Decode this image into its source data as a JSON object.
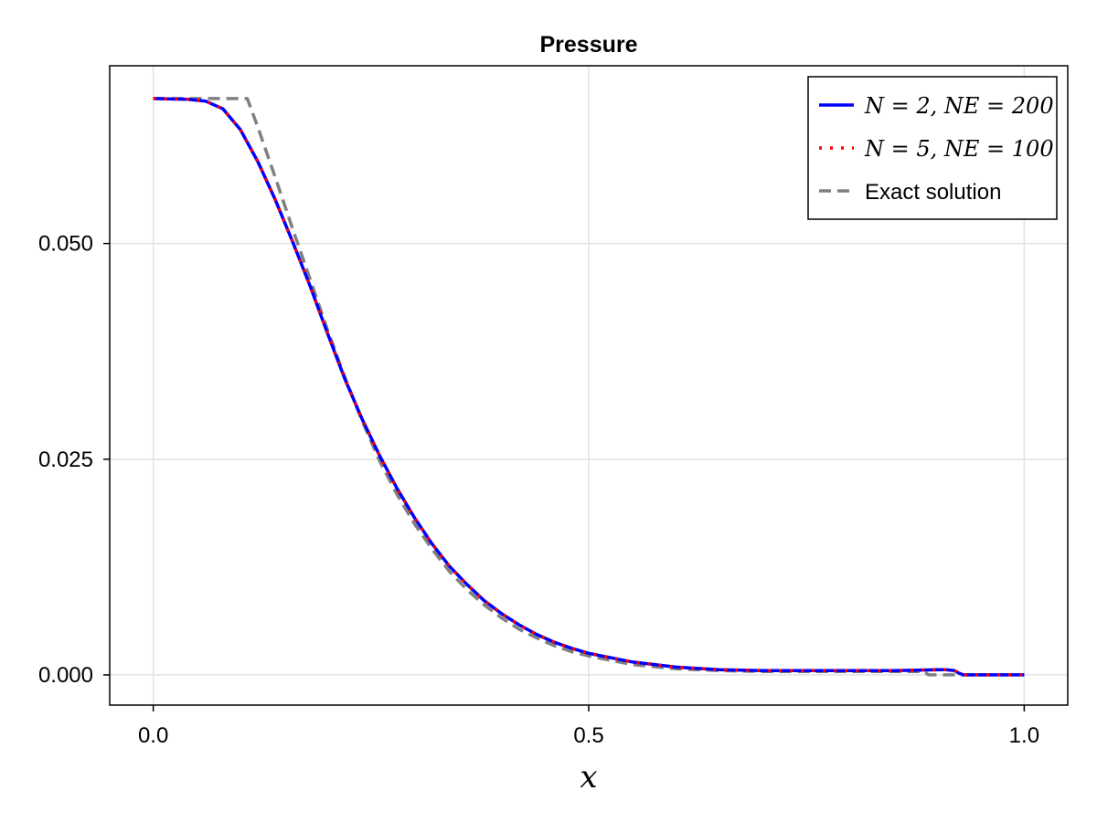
{
  "chart_data": {
    "type": "line",
    "title": "Pressure",
    "xlabel": "x",
    "ylabel": "",
    "xlim": [
      -0.05,
      1.05
    ],
    "ylim": [
      -0.0035,
      0.0706
    ],
    "xticks": [
      0.0,
      0.5,
      1.0
    ],
    "xtick_labels": [
      "0.0",
      "0.5",
      "1.0"
    ],
    "yticks": [
      0.0,
      0.025,
      0.05
    ],
    "ytick_labels": [
      "0.000",
      "0.025",
      "0.050"
    ],
    "grid": true,
    "legend_position": "top-right",
    "series": [
      {
        "name": "N = 2, NE = 200",
        "color": "#0000ff",
        "style": "solid",
        "x": [
          0.0,
          0.04,
          0.06,
          0.08,
          0.1,
          0.12,
          0.14,
          0.16,
          0.18,
          0.2,
          0.22,
          0.24,
          0.26,
          0.28,
          0.3,
          0.32,
          0.34,
          0.36,
          0.38,
          0.4,
          0.42,
          0.44,
          0.46,
          0.48,
          0.5,
          0.55,
          0.6,
          0.65,
          0.7,
          0.75,
          0.8,
          0.85,
          0.9,
          0.91,
          0.92,
          0.925,
          0.93,
          0.94,
          1.0
        ],
        "y": [
          0.0668,
          0.0667,
          0.0665,
          0.0656,
          0.0632,
          0.0595,
          0.0551,
          0.0502,
          0.0451,
          0.0396,
          0.0343,
          0.0296,
          0.0254,
          0.0216,
          0.0182,
          0.0152,
          0.0126,
          0.0105,
          0.0086,
          0.0071,
          0.0058,
          0.0047,
          0.0038,
          0.0031,
          0.0025,
          0.0015,
          0.0009,
          0.0006,
          0.0005,
          0.0005,
          0.0005,
          0.0005,
          0.0006,
          0.0006,
          0.0005,
          0.0002,
          0.0,
          0.0,
          0.0
        ]
      },
      {
        "name": "N = 5, NE = 100",
        "color": "#ff0000",
        "style": "dotted",
        "x": [
          0.0,
          0.04,
          0.06,
          0.08,
          0.1,
          0.12,
          0.14,
          0.16,
          0.18,
          0.2,
          0.22,
          0.24,
          0.26,
          0.28,
          0.3,
          0.32,
          0.34,
          0.36,
          0.38,
          0.4,
          0.42,
          0.44,
          0.46,
          0.48,
          0.5,
          0.55,
          0.6,
          0.65,
          0.7,
          0.75,
          0.8,
          0.85,
          0.9,
          0.91,
          0.92,
          0.925,
          0.93,
          0.94,
          1.0
        ],
        "y": [
          0.0668,
          0.0667,
          0.0665,
          0.0656,
          0.0632,
          0.0595,
          0.0551,
          0.0502,
          0.0451,
          0.0396,
          0.0343,
          0.0296,
          0.0254,
          0.0216,
          0.0182,
          0.0152,
          0.0126,
          0.0105,
          0.0086,
          0.0071,
          0.0058,
          0.0047,
          0.0038,
          0.0031,
          0.0025,
          0.0015,
          0.0009,
          0.0006,
          0.0005,
          0.0005,
          0.0005,
          0.0005,
          0.0006,
          0.0006,
          0.0005,
          0.0002,
          0.0,
          0.0,
          0.0
        ]
      },
      {
        "name": "Exact solution",
        "color": "#808080",
        "style": "dashed",
        "x": [
          0.0,
          0.05,
          0.108,
          0.12,
          0.14,
          0.16,
          0.18,
          0.2,
          0.22,
          0.24,
          0.26,
          0.28,
          0.3,
          0.32,
          0.34,
          0.36,
          0.38,
          0.4,
          0.42,
          0.44,
          0.46,
          0.48,
          0.5,
          0.55,
          0.6,
          0.65,
          0.7,
          0.75,
          0.8,
          0.85,
          0.88,
          0.885,
          0.89,
          0.9,
          1.0
        ],
        "y": [
          0.0668,
          0.0668,
          0.0668,
          0.0635,
          0.0577,
          0.0517,
          0.0459,
          0.04,
          0.0345,
          0.0294,
          0.0248,
          0.0209,
          0.0175,
          0.0146,
          0.012,
          0.0099,
          0.0081,
          0.0066,
          0.0053,
          0.0043,
          0.0034,
          0.0027,
          0.0022,
          0.0012,
          0.0007,
          0.0005,
          0.0004,
          0.0004,
          0.0004,
          0.0004,
          0.0004,
          0.0004,
          0.0,
          0.0,
          0.0
        ]
      }
    ]
  }
}
